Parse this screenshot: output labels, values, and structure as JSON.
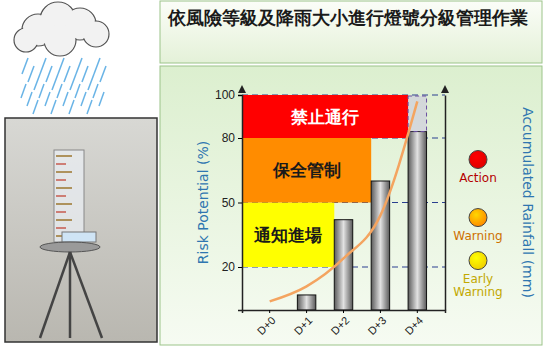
{
  "chart_data": {
    "type": "bar",
    "title": "依風險等級及降雨大小進行燈號分級管理作業",
    "categories": [
      "D+0",
      "D+1",
      "D+2",
      "D+3",
      "D+4"
    ],
    "y_label": "Risk Potential (%)",
    "y2_label": "Accumulated Rainfall (mm)",
    "ylim": [
      0,
      100
    ],
    "yticks": [
      20,
      50,
      80,
      100
    ],
    "y2lim": [
      0,
      100
    ],
    "grid": true,
    "series": [
      {
        "type": "bar",
        "axis": "y2",
        "color": "#808080",
        "values": [
          null,
          7,
          42,
          60,
          83
        ]
      },
      {
        "type": "line",
        "axis": "y2",
        "color": "#f4a460",
        "values": [
          4,
          11,
          24,
          44,
          97
        ]
      }
    ],
    "risk_levels": [
      {
        "label": "通知進場",
        "from": 20,
        "to": 50,
        "color": "#ffff00"
      },
      {
        "label": "保全管制",
        "from": 50,
        "to": 80,
        "color": "#ff8c00"
      },
      {
        "label": "禁止通行",
        "from": 80,
        "to": 100,
        "color": "#ff0000"
      }
    ],
    "alerts": [
      {
        "label": "Action",
        "color": "#e00000",
        "value": 70
      },
      {
        "label": "Warning",
        "color": "#ff8c00",
        "value": 43
      },
      {
        "label": "Early Warning",
        "color": "#f0d000",
        "value": 23
      }
    ]
  }
}
